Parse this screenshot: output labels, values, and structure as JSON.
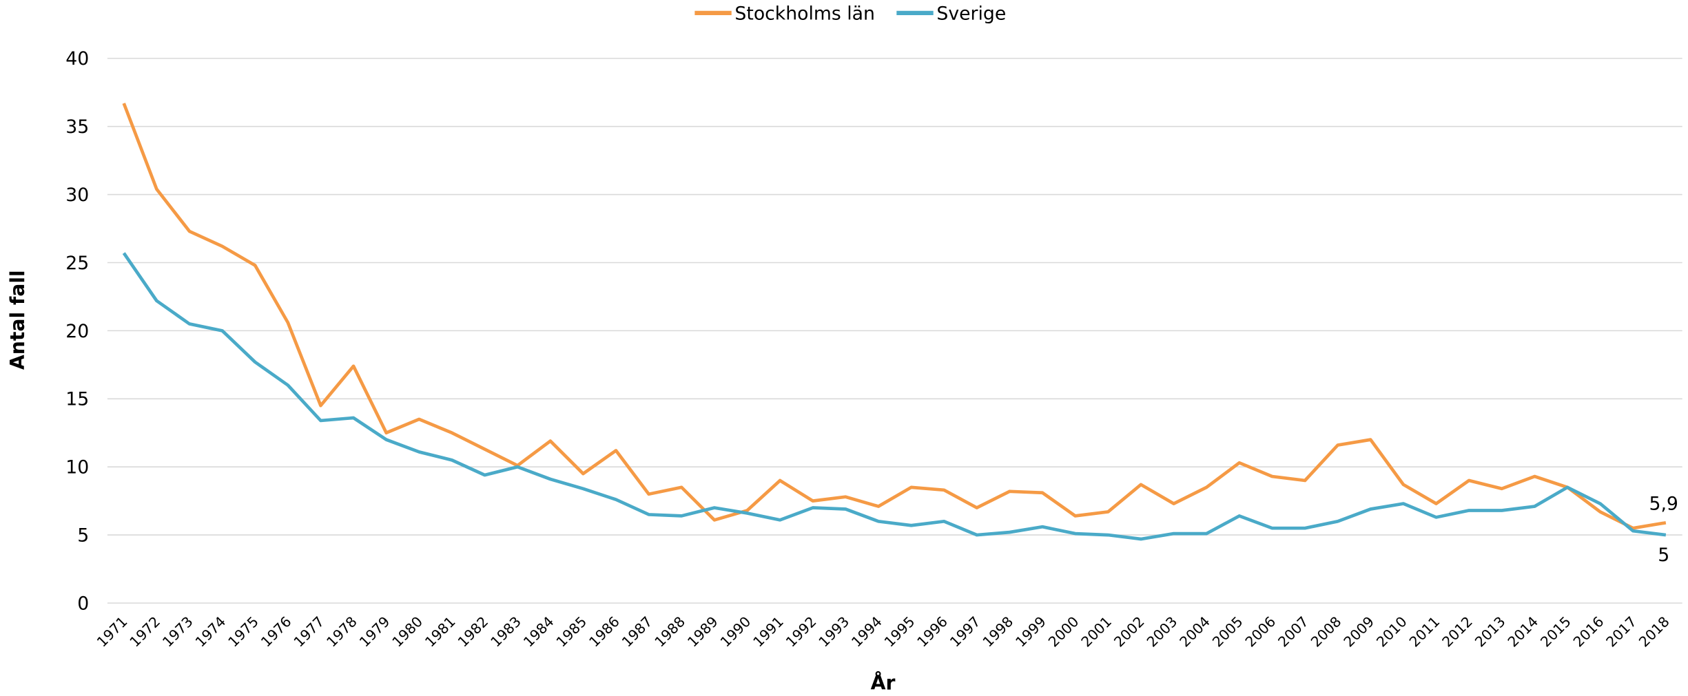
{
  "chart_data": {
    "type": "line",
    "y_label": "Antal fall",
    "x_label": "År",
    "categories": [
      "1971",
      "1972",
      "1973",
      "1974",
      "1975",
      "1976",
      "1977",
      "1978",
      "1979",
      "1980",
      "1981",
      "1982",
      "1983",
      "1984",
      "1985",
      "1986",
      "1987",
      "1988",
      "1989",
      "1990",
      "1991",
      "1992",
      "1993",
      "1994",
      "1995",
      "1996",
      "1997",
      "1998",
      "1999",
      "2000",
      "2001",
      "2002",
      "2003",
      "2004",
      "2005",
      "2006",
      "2007",
      "2008",
      "2009",
      "2010",
      "2011",
      "2012",
      "2013",
      "2014",
      "2015",
      "2016",
      "2017",
      "2018"
    ],
    "series": [
      {
        "name": "Stockholms län",
        "color": "#f59a45",
        "values": [
          36.7,
          30.4,
          27.3,
          26.2,
          24.8,
          20.6,
          14.5,
          17.4,
          12.5,
          13.5,
          12.5,
          11.3,
          10.1,
          11.9,
          9.5,
          11.2,
          8.0,
          8.5,
          6.1,
          6.8,
          9.0,
          7.5,
          7.8,
          7.1,
          8.5,
          8.3,
          7.0,
          8.2,
          8.1,
          6.4,
          6.7,
          8.7,
          7.3,
          8.5,
          10.3,
          9.3,
          9.0,
          11.6,
          12.0,
          8.7,
          7.3,
          9.0,
          8.4,
          9.3,
          8.5,
          6.7,
          5.5,
          5.9
        ],
        "value_labels": [
          null,
          null,
          null,
          null,
          null,
          null,
          null,
          null,
          null,
          null,
          null,
          null,
          null,
          null,
          null,
          null,
          null,
          null,
          null,
          null,
          null,
          null,
          null,
          null,
          null,
          null,
          null,
          null,
          null,
          null,
          null,
          null,
          null,
          null,
          null,
          null,
          null,
          null,
          null,
          null,
          null,
          null,
          null,
          null,
          null,
          null,
          null,
          "5,9"
        ]
      },
      {
        "name": "Sverige",
        "color": "#4aaac8",
        "values": [
          25.7,
          22.2,
          20.5,
          20.0,
          17.7,
          16.0,
          13.4,
          13.6,
          12.0,
          11.1,
          10.5,
          9.4,
          10.0,
          9.1,
          8.4,
          7.6,
          6.5,
          6.4,
          7.0,
          6.6,
          6.1,
          7.0,
          6.9,
          6.0,
          5.7,
          6.0,
          5.0,
          5.2,
          5.6,
          5.1,
          5.0,
          4.7,
          5.1,
          5.1,
          6.4,
          5.5,
          5.5,
          6.0,
          6.9,
          7.3,
          6.3,
          6.8,
          6.8,
          7.1,
          8.5,
          7.3,
          5.3,
          5.0
        ],
        "value_labels": [
          null,
          null,
          null,
          null,
          null,
          null,
          null,
          null,
          null,
          null,
          null,
          null,
          null,
          null,
          null,
          null,
          null,
          null,
          null,
          null,
          null,
          null,
          null,
          null,
          null,
          null,
          null,
          null,
          null,
          null,
          null,
          null,
          null,
          null,
          null,
          null,
          null,
          null,
          null,
          null,
          null,
          null,
          null,
          null,
          null,
          null,
          null,
          "5"
        ]
      }
    ],
    "ylim": [
      0,
      40
    ],
    "yticks": [
      0,
      5,
      10,
      15,
      20,
      25,
      30,
      35,
      40
    ],
    "grid": true,
    "legend": "top"
  }
}
